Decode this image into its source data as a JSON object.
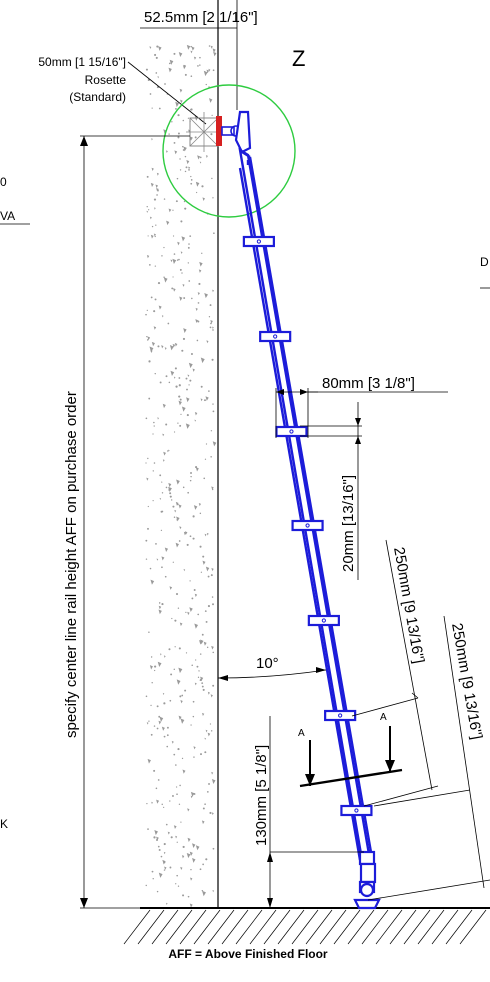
{
  "labels": {
    "top_dim": "52.5mm [2 1/16\"]",
    "rosette_size": "50mm [1 15/16\"]",
    "rosette_name": "Rosette",
    "rosette_std": "(Standard)",
    "detail_letter": "Z",
    "vertical_note": "specify center line rail height AFF on purchase order",
    "width_dim": "80mm [3 1/8\"]",
    "thickness_dim": "20mm [13/16\"]",
    "spacing_dim_1": "250mm [9 13/16\"]",
    "spacing_dim_2": "250mm [9 13/16\"]",
    "angle": "10°",
    "bottom_dim": "130mm [5 1/8\"]",
    "section_a_left": "A",
    "section_a_right": "A",
    "footer": "AFF = Above Finished Floor",
    "cut_left_1": "0",
    "cut_left_2": "VA",
    "cut_right": "D",
    "cut_left_3": "K"
  },
  "colors": {
    "ladder": "#1c1cd9",
    "detail_circle": "#2ecc40",
    "rosette": "#d62020",
    "line": "#000000"
  }
}
